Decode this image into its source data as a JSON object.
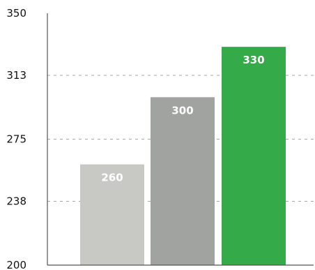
{
  "chart_data": {
    "type": "bar",
    "categories": [
      "",
      "",
      ""
    ],
    "values": [
      260,
      300,
      330
    ],
    "data_labels": [
      "260",
      "300",
      "330"
    ],
    "colors": [
      "#c8c9c5",
      "#a0a3a0",
      "#35aa48"
    ],
    "title": "",
    "xlabel": "",
    "ylabel": "",
    "ylim": [
      200,
      350
    ],
    "y_ticks": [
      200,
      238,
      275,
      313,
      350
    ],
    "y_tick_labels": [
      "200",
      "238",
      "275",
      "313",
      "350"
    ],
    "grid": "horizontal dashed",
    "legend": "none"
  }
}
